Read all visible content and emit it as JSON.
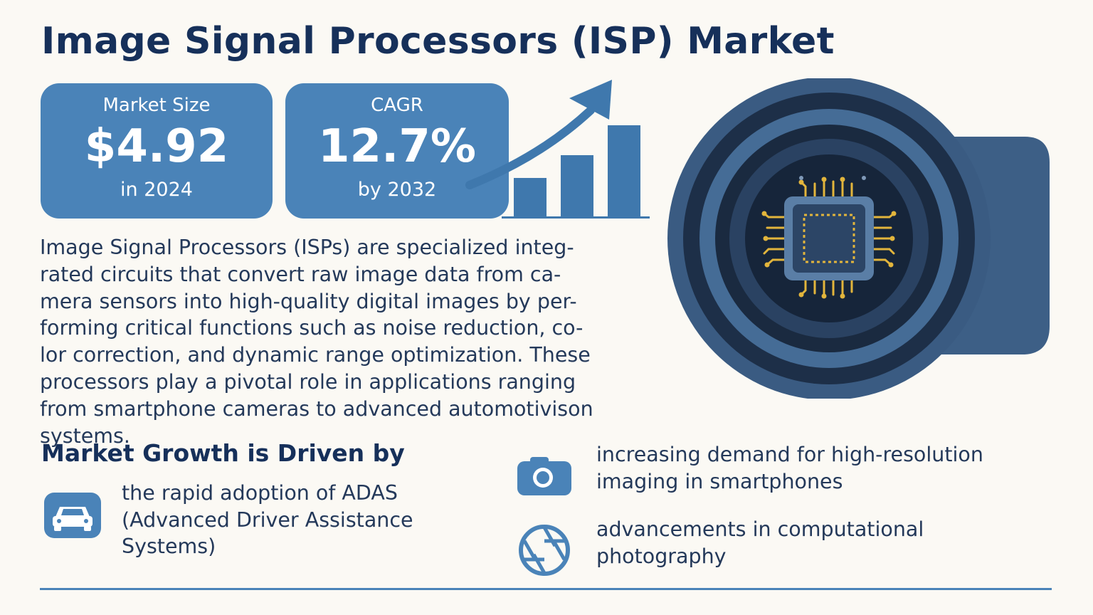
{
  "title": "Image Signal Processors (ISP) Market",
  "stats": [
    {
      "label": "Market Size",
      "value": "$4.92",
      "sub": "in 2024"
    },
    {
      "label": "CAGR",
      "value": "12.7%",
      "sub": "by 2032"
    }
  ],
  "description": "Image Signal Processors (ISPs) are specialized integ-\nrated circuits that convert raw image data from ca-\nmera sensors into high-quality digital images by per-\nforming critical functions such as noise reduction, co-\nlor correction, and dynamic range optimization. These\nprocessors play a pivotal role in applications ranging\nfrom smartphone cameras to advanced automotivison systems.",
  "drivers": {
    "heading": "Market Growth is Driven by",
    "items": [
      {
        "icon": "car-icon",
        "text": "the rapid adoption of ADAS\n(Advanced Driver Assistance\nSystems)"
      },
      {
        "icon": "camera-icon",
        "text": "increasing demand for high-resolution\nimaging in smartphones"
      },
      {
        "icon": "aperture-icon",
        "text": "advancements in computational\nphotography"
      }
    ]
  },
  "illustrations": {
    "growth_chart_icon": "rising-bar-chart-arrow-icon",
    "camera_icon": "camera-lens-with-chip-icon"
  },
  "colors": {
    "background": "#fbf9f4",
    "accent": "#4a83b8",
    "title": "#16305a",
    "body_text": "#24395a",
    "chip_gold": "#e2b53c"
  }
}
